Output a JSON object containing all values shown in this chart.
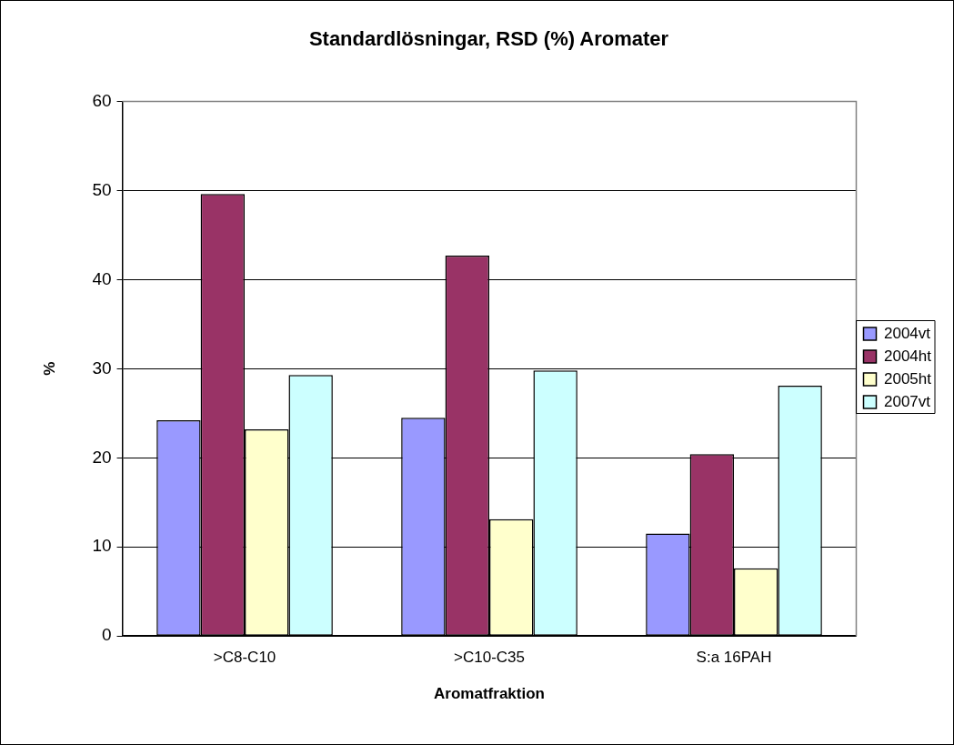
{
  "chart_data": {
    "type": "bar",
    "title": "Standardlösningar, RSD (%) Aromater",
    "xlabel": "Aromatfraktion",
    "ylabel": "%",
    "categories": [
      ">C8-C10",
      ">C10-C35",
      "S:a 16PAH"
    ],
    "series": [
      {
        "name": "2004vt",
        "color": "#9999ff",
        "values": [
          24.2,
          24.5,
          11.5
        ]
      },
      {
        "name": "2004ht",
        "color": "#993366",
        "values": [
          49.6,
          42.7,
          20.4
        ]
      },
      {
        "name": "2005ht",
        "color": "#ffffcc",
        "values": [
          23.2,
          13.1,
          7.6
        ]
      },
      {
        "name": "2007vt",
        "color": "#ccffff",
        "values": [
          29.3,
          29.8,
          28.1
        ]
      }
    ],
    "ylim": [
      0,
      60
    ],
    "yticks": [
      0,
      10,
      20,
      30,
      40,
      50,
      60
    ],
    "grid": "y",
    "legend": "right"
  }
}
